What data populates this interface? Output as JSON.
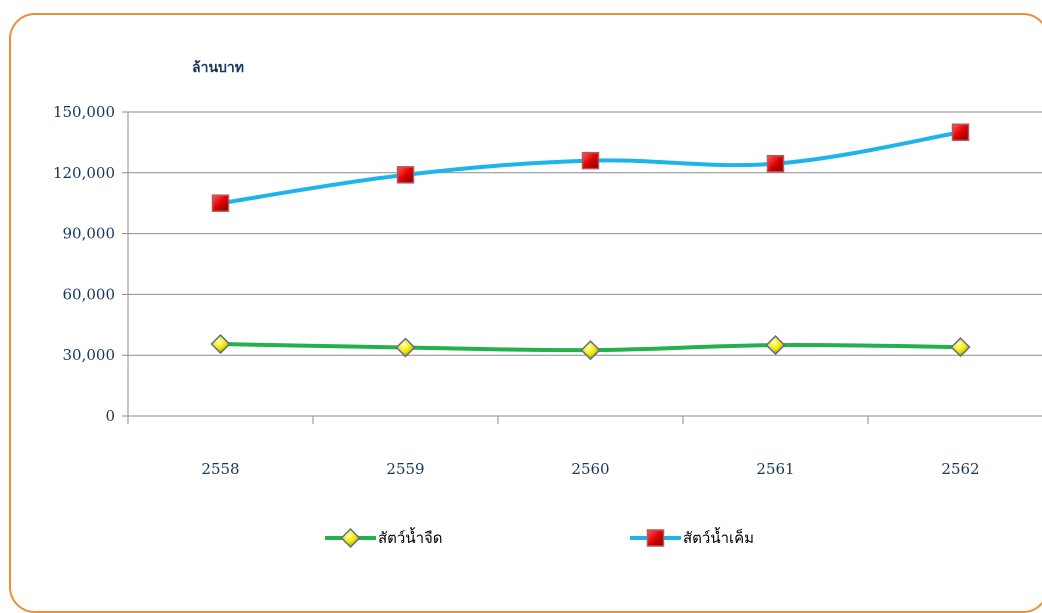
{
  "chart_data": {
    "type": "line",
    "ylabel": "ล้านบาท",
    "categories": [
      "2558",
      "2559",
      "2560",
      "2561",
      "2562"
    ],
    "ylim": [
      0,
      150000
    ],
    "yticks": [
      "0",
      "30,000",
      "60,000",
      "90,000",
      "120,000",
      "150,000"
    ],
    "grid": true,
    "legend_position": "bottom",
    "series": [
      {
        "name": "สัตว์น้ำจืด",
        "values": [
          35500,
          33800,
          32500,
          35000,
          34000
        ],
        "line_color": "#22B14C",
        "marker": "diamond",
        "marker_color": "#F2E600"
      },
      {
        "name": "สัตว์น้ำเค็ม",
        "values": [
          105000,
          119000,
          126000,
          124500,
          140000
        ],
        "line_color": "#1EB4EB",
        "marker": "square",
        "marker_color": "#D7191C"
      }
    ]
  }
}
